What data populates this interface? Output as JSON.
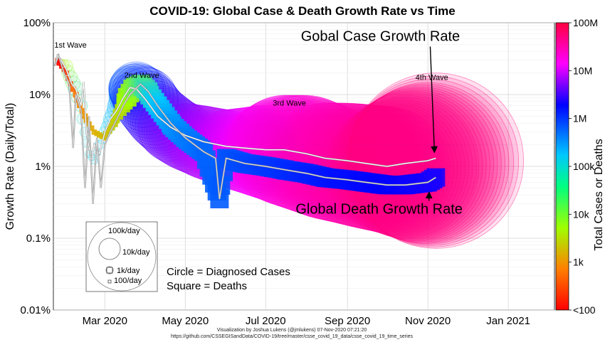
{
  "chart_data": {
    "type": "scatter",
    "title": "COVID-19: Global Case & Death Growth Rate vs Time",
    "xlabel": "",
    "ylabel": "Growth Rate (Daily/Total)",
    "yscale": "log",
    "ylim": [
      0.0001,
      1
    ],
    "xlim": [
      "2020-01-22",
      "2021-02-05"
    ],
    "grid": true,
    "x_ticks": [
      {
        "date": "2020-03-01",
        "label": "Mar 2020"
      },
      {
        "date": "2020-05-01",
        "label": "May 2020"
      },
      {
        "date": "2020-07-01",
        "label": "Jul 2020"
      },
      {
        "date": "2020-09-01",
        "label": "Sep 2020"
      },
      {
        "date": "2020-11-01",
        "label": "Nov 2020"
      },
      {
        "date": "2021-01-01",
        "label": "Jan 2021"
      }
    ],
    "y_ticks": [
      {
        "value": 1,
        "label": "100%"
      },
      {
        "value": 0.1,
        "label": "10%"
      },
      {
        "value": 0.01,
        "label": "1%"
      },
      {
        "value": 0.001,
        "label": "0.1%"
      },
      {
        "value": 0.0001,
        "label": "0.01%"
      }
    ],
    "colorbar": {
      "label": "Total Cases or Deaths",
      "scale": "log",
      "range": [
        100,
        100000000
      ],
      "ticks": [
        {
          "value": 100,
          "label": "<100"
        },
        {
          "value": 1000,
          "label": "1k"
        },
        {
          "value": 10000,
          "label": "10k"
        },
        {
          "value": 100000,
          "label": "100k"
        },
        {
          "value": 1000000,
          "label": "1M"
        },
        {
          "value": 10000000,
          "label": "10M"
        },
        {
          "value": 100000000,
          "label": "100M"
        }
      ]
    },
    "series": [
      {
        "kind": "cases",
        "points": [
          [
            "2020-01-25",
            0.3,
            1500
          ],
          [
            "2020-02-01",
            0.25,
            12000
          ],
          [
            "2020-02-08",
            0.12,
            37000
          ],
          [
            "2020-02-12",
            0.07,
            45000
          ],
          [
            "2020-02-15",
            0.03,
            67000
          ],
          [
            "2020-02-18",
            0.015,
            73000
          ],
          [
            "2020-02-22",
            0.012,
            78000
          ],
          [
            "2020-02-26",
            0.02,
            82000
          ],
          [
            "2020-03-01",
            0.03,
            88000
          ],
          [
            "2020-03-05",
            0.04,
            97000
          ],
          [
            "2020-03-10",
            0.06,
            118000
          ],
          [
            "2020-03-15",
            0.085,
            168000
          ],
          [
            "2020-03-20",
            0.12,
            276000
          ],
          [
            "2020-03-25",
            0.12,
            470000
          ],
          [
            "2020-04-01",
            0.085,
            930000
          ],
          [
            "2020-04-10",
            0.05,
            1600000
          ],
          [
            "2020-04-20",
            0.035,
            2400000
          ],
          [
            "2020-05-01",
            0.026,
            3300000
          ],
          [
            "2020-05-15",
            0.022,
            4500000
          ],
          [
            "2020-06-01",
            0.018,
            6200000
          ],
          [
            "2020-06-15",
            0.017,
            8000000
          ],
          [
            "2020-07-01",
            0.016,
            10500000
          ],
          [
            "2020-07-15",
            0.017,
            13500000
          ],
          [
            "2020-08-01",
            0.015,
            17500000
          ],
          [
            "2020-08-15",
            0.012,
            21500000
          ],
          [
            "2020-09-01",
            0.011,
            25500000
          ],
          [
            "2020-09-15",
            0.01,
            29500000
          ],
          [
            "2020-10-01",
            0.009,
            34000000
          ],
          [
            "2020-10-15",
            0.01,
            39000000
          ],
          [
            "2020-11-01",
            0.011,
            46000000
          ],
          [
            "2020-11-07",
            0.012,
            49500000
          ]
        ]
      },
      {
        "kind": "deaths",
        "points": [
          [
            "2020-01-25",
            0.3,
            40
          ],
          [
            "2020-02-01",
            0.2,
            260
          ],
          [
            "2020-02-08",
            0.1,
            800
          ],
          [
            "2020-02-15",
            0.05,
            1500
          ],
          [
            "2020-02-22",
            0.03,
            2300
          ],
          [
            "2020-03-01",
            0.025,
            3000
          ],
          [
            "2020-03-08",
            0.04,
            3800
          ],
          [
            "2020-03-15",
            0.07,
            6500
          ],
          [
            "2020-03-22",
            0.12,
            15000
          ],
          [
            "2020-03-28",
            0.14,
            30000
          ],
          [
            "2020-04-03",
            0.11,
            58000
          ],
          [
            "2020-04-10",
            0.07,
            100000
          ],
          [
            "2020-04-20",
            0.04,
            170000
          ],
          [
            "2020-05-01",
            0.025,
            235000
          ],
          [
            "2020-05-15",
            0.016,
            305000
          ],
          [
            "2020-05-27",
            0.0035,
            350000
          ],
          [
            "2020-06-01",
            0.013,
            375000
          ],
          [
            "2020-06-15",
            0.011,
            440000
          ],
          [
            "2020-07-01",
            0.01,
            515000
          ],
          [
            "2020-07-15",
            0.009,
            580000
          ],
          [
            "2020-08-01",
            0.008,
            685000
          ],
          [
            "2020-08-15",
            0.007,
            770000
          ],
          [
            "2020-09-01",
            0.0065,
            865000
          ],
          [
            "2020-09-15",
            0.006,
            940000
          ],
          [
            "2020-10-01",
            0.0055,
            1015000
          ],
          [
            "2020-10-15",
            0.0055,
            1100000
          ],
          [
            "2020-11-01",
            0.006,
            1200000
          ],
          [
            "2020-11-07",
            0.007,
            1250000
          ]
        ]
      }
    ],
    "lines": [
      {
        "name": "Gobal Case Growth Rate",
        "color": "#ffffff",
        "points": [
          [
            "2020-01-23",
            0.25
          ],
          [
            "2020-01-25",
            0.35
          ],
          [
            "2020-01-28",
            0.3
          ],
          [
            "2020-02-01",
            0.22
          ],
          [
            "2020-02-05",
            0.14
          ],
          [
            "2020-02-08",
            0.12
          ],
          [
            "2020-02-12",
            0.07
          ],
          [
            "2020-02-14",
            0.15
          ],
          [
            "2020-02-16",
            0.03
          ],
          [
            "2020-02-20",
            0.012
          ],
          [
            "2020-02-22",
            0.02
          ],
          [
            "2020-02-26",
            0.015
          ],
          [
            "2020-03-01",
            0.03
          ],
          [
            "2020-03-05",
            0.045
          ],
          [
            "2020-03-10",
            0.06
          ],
          [
            "2020-03-15",
            0.09
          ],
          [
            "2020-03-20",
            0.125
          ],
          [
            "2020-03-25",
            0.12
          ],
          [
            "2020-04-01",
            0.085
          ],
          [
            "2020-04-10",
            0.05
          ],
          [
            "2020-04-20",
            0.035
          ],
          [
            "2020-05-01",
            0.027
          ],
          [
            "2020-05-15",
            0.022
          ],
          [
            "2020-06-01",
            0.019
          ],
          [
            "2020-06-15",
            0.018
          ],
          [
            "2020-07-01",
            0.017
          ],
          [
            "2020-07-15",
            0.017
          ],
          [
            "2020-08-01",
            0.015
          ],
          [
            "2020-08-15",
            0.013
          ],
          [
            "2020-09-01",
            0.012
          ],
          [
            "2020-09-15",
            0.011
          ],
          [
            "2020-10-01",
            0.01
          ],
          [
            "2020-10-15",
            0.011
          ],
          [
            "2020-11-01",
            0.012
          ],
          [
            "2020-11-07",
            0.013
          ]
        ]
      },
      {
        "name": "Global Death Growth Rate",
        "color": "#d8d8d8",
        "points": [
          [
            "2020-01-23",
            0.25
          ],
          [
            "2020-01-26",
            0.35
          ],
          [
            "2020-01-30",
            0.2
          ],
          [
            "2020-02-03",
            0.14
          ],
          [
            "2020-02-06",
            0.018
          ],
          [
            "2020-02-08",
            0.1
          ],
          [
            "2020-02-12",
            0.06
          ],
          [
            "2020-02-15",
            0.005
          ],
          [
            "2020-02-18",
            0.05
          ],
          [
            "2020-02-21",
            0.003
          ],
          [
            "2020-02-24",
            0.025
          ],
          [
            "2020-02-27",
            0.005
          ],
          [
            "2020-03-01",
            0.02
          ],
          [
            "2020-03-05",
            0.03
          ],
          [
            "2020-03-10",
            0.045
          ],
          [
            "2020-03-15",
            0.07
          ],
          [
            "2020-03-20",
            0.1
          ],
          [
            "2020-03-28",
            0.14
          ],
          [
            "2020-04-03",
            0.11
          ],
          [
            "2020-04-10",
            0.07
          ],
          [
            "2020-04-20",
            0.04
          ],
          [
            "2020-05-01",
            0.025
          ],
          [
            "2020-05-15",
            0.016
          ],
          [
            "2020-05-24",
            0.013
          ],
          [
            "2020-05-27",
            0.0035
          ],
          [
            "2020-06-01",
            0.013
          ],
          [
            "2020-06-15",
            0.011
          ],
          [
            "2020-07-01",
            0.01
          ],
          [
            "2020-07-15",
            0.009
          ],
          [
            "2020-08-01",
            0.008
          ],
          [
            "2020-08-15",
            0.007
          ],
          [
            "2020-09-01",
            0.0065
          ],
          [
            "2020-09-15",
            0.006
          ],
          [
            "2020-10-01",
            0.0055
          ],
          [
            "2020-10-15",
            0.0055
          ],
          [
            "2020-11-01",
            0.006
          ],
          [
            "2020-11-07",
            0.007
          ]
        ]
      }
    ],
    "annotations": [
      {
        "text": "1st Wave",
        "date": "2020-02-04",
        "y": 0.45
      },
      {
        "text": "2nd Wave",
        "date": "2020-03-29",
        "y": 0.17
      },
      {
        "text": "3rd Wave",
        "date": "2020-07-19",
        "y": 0.07
      },
      {
        "text": "4th Wave",
        "date": "2020-11-04",
        "y": 0.16
      },
      {
        "text": "Gobal Case Growth Rate",
        "date": "2020-09-26",
        "y": 0.56,
        "arrow_to": [
          "2020-11-06",
          0.013
        ]
      },
      {
        "text": "Global Death Growth Rate",
        "date": "2020-09-25",
        "y": 0.0022,
        "arrow_to": [
          "2020-11-02",
          0.0055
        ]
      }
    ],
    "legend": {
      "position": "bottom-left",
      "size_labels": [
        "100k/day",
        "10k/day",
        "1k/day",
        "100/day"
      ],
      "shape_labels": [
        "Circle = Diagnosed Cases",
        "Square = Deaths"
      ]
    }
  },
  "footer": {
    "credit": "Visualization by Joshua Lukens (@jmlukens) 07-Nov-2020 07:21:20",
    "source": "https://github.com/CSSEGISandData/COVID-19/tree/master/csse_covid_19_data/csse_covid_19_time_series"
  }
}
